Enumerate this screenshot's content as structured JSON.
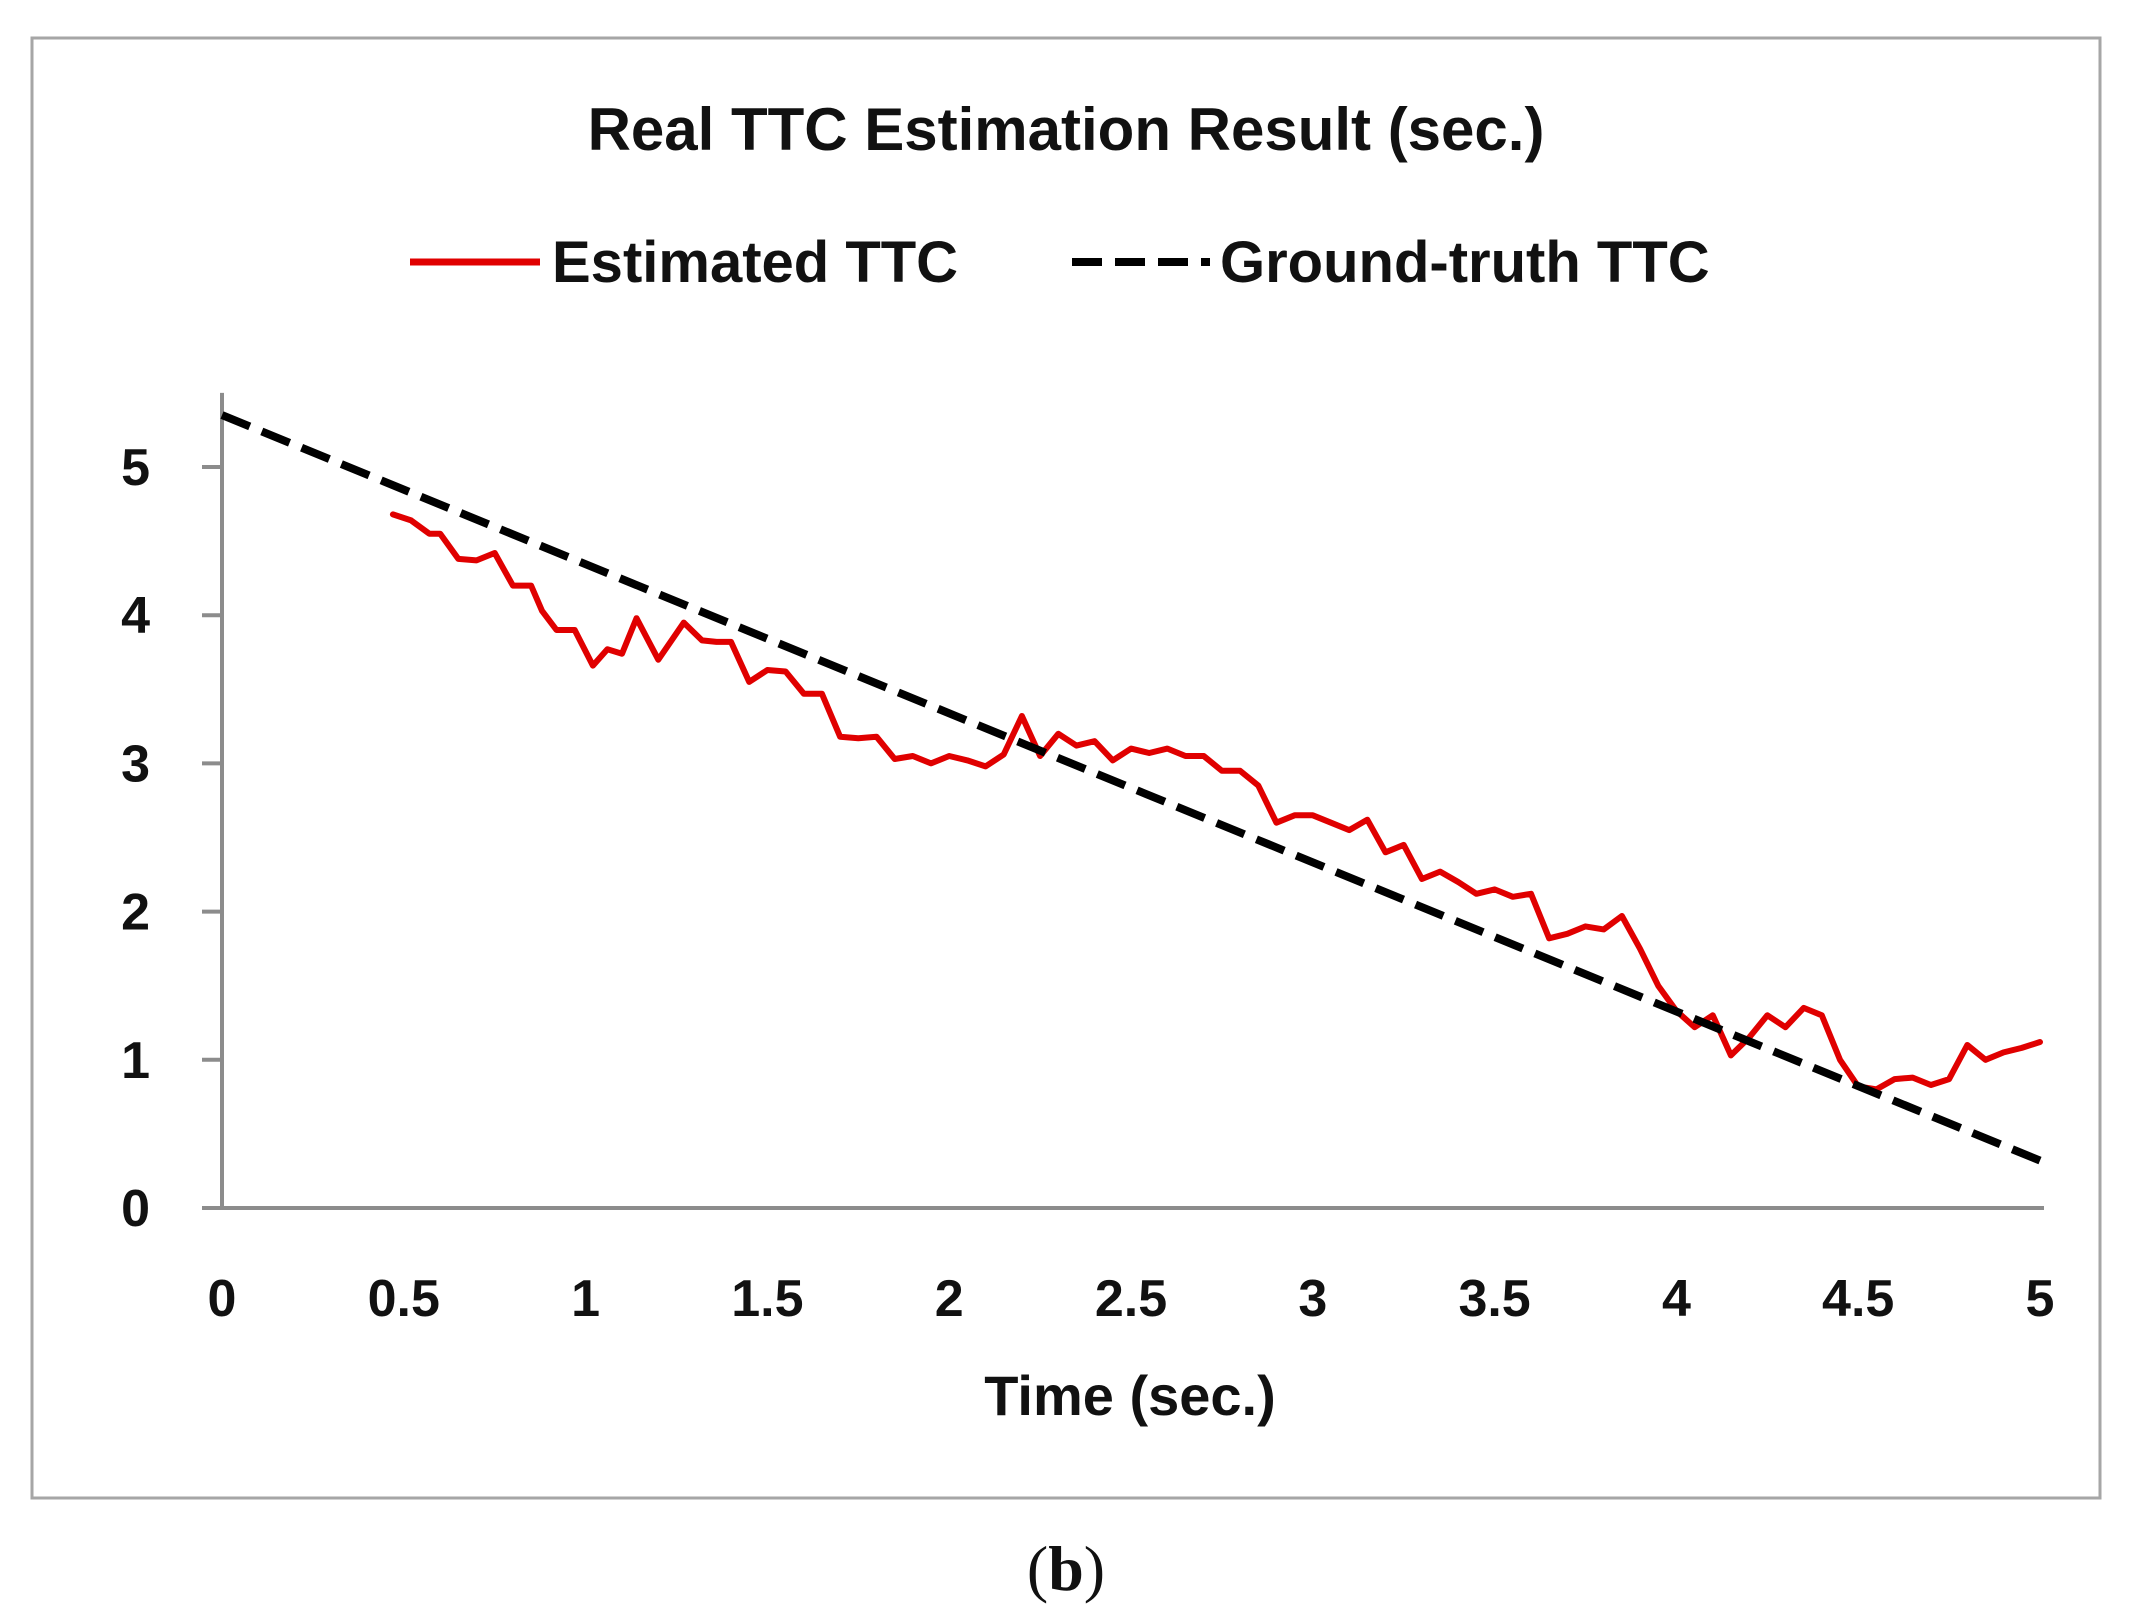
{
  "chart_data": {
    "type": "line",
    "title": "Real TTC Estimation Result (sec.)",
    "xlabel": "Time (sec.)",
    "ylabel": "",
    "xlim": [
      0,
      5
    ],
    "ylim": [
      0,
      5.5
    ],
    "xticks": [
      0,
      0.5,
      1,
      1.5,
      2,
      2.5,
      3,
      3.5,
      4,
      4.5,
      5
    ],
    "xtick_labels": [
      "0",
      "0.5",
      "1",
      "1.5",
      "2",
      "2.5",
      "3",
      "3.5",
      "4",
      "4.5",
      "5"
    ],
    "yticks": [
      0,
      1,
      2,
      3,
      4,
      5
    ],
    "ytick_labels": [
      "0",
      "1",
      "2",
      "3",
      "4",
      "5"
    ],
    "grid": false,
    "legend_position": "top-center",
    "series": [
      {
        "name": "Estimated TTC",
        "color": "#e00000",
        "style": "solid",
        "x": [
          0.47,
          0.52,
          0.57,
          0.6,
          0.65,
          0.7,
          0.75,
          0.8,
          0.85,
          0.88,
          0.92,
          0.97,
          1.02,
          1.06,
          1.1,
          1.14,
          1.2,
          1.27,
          1.32,
          1.36,
          1.4,
          1.45,
          1.5,
          1.55,
          1.6,
          1.65,
          1.7,
          1.75,
          1.8,
          1.85,
          1.9,
          1.95,
          2.0,
          2.05,
          2.1,
          2.15,
          2.2,
          2.25,
          2.3,
          2.35,
          2.4,
          2.45,
          2.5,
          2.55,
          2.6,
          2.65,
          2.7,
          2.75,
          2.8,
          2.85,
          2.9,
          2.95,
          3.0,
          3.05,
          3.1,
          3.15,
          3.2,
          3.25,
          3.3,
          3.35,
          3.4,
          3.45,
          3.5,
          3.55,
          3.6,
          3.65,
          3.7,
          3.75,
          3.8,
          3.85,
          3.9,
          3.95,
          4.0,
          4.05,
          4.1,
          4.15,
          4.2,
          4.25,
          4.3,
          4.35,
          4.4,
          4.45,
          4.5,
          4.55,
          4.6,
          4.65,
          4.7,
          4.75,
          4.8,
          4.85,
          4.9,
          4.95,
          5.0
        ],
        "y": [
          4.68,
          4.64,
          4.55,
          4.55,
          4.38,
          4.37,
          4.42,
          4.2,
          4.2,
          4.03,
          3.9,
          3.9,
          3.66,
          3.77,
          3.74,
          3.98,
          3.7,
          3.95,
          3.83,
          3.82,
          3.82,
          3.55,
          3.63,
          3.62,
          3.47,
          3.47,
          3.18,
          3.17,
          3.18,
          3.03,
          3.05,
          3.0,
          3.05,
          3.02,
          2.98,
          3.06,
          3.32,
          3.05,
          3.2,
          3.12,
          3.15,
          3.02,
          3.1,
          3.07,
          3.1,
          3.05,
          3.05,
          2.95,
          2.95,
          2.85,
          2.6,
          2.65,
          2.65,
          2.6,
          2.55,
          2.62,
          2.4,
          2.45,
          2.22,
          2.27,
          2.2,
          2.12,
          2.15,
          2.1,
          2.12,
          1.82,
          1.85,
          1.9,
          1.88,
          1.97,
          1.75,
          1.5,
          1.33,
          1.22,
          1.3,
          1.03,
          1.15,
          1.3,
          1.22,
          1.35,
          1.3,
          1.0,
          0.82,
          0.8,
          0.87,
          0.88,
          0.83,
          0.87,
          1.1,
          1.0,
          1.05,
          1.08,
          1.12
        ]
      },
      {
        "name": "Ground-truth TTC",
        "color": "#000000",
        "style": "dashed",
        "x": [
          0,
          5
        ],
        "y": [
          5.35,
          0.32
        ]
      }
    ]
  },
  "caption": {
    "open": "(",
    "letter": "b",
    "close": ")"
  }
}
